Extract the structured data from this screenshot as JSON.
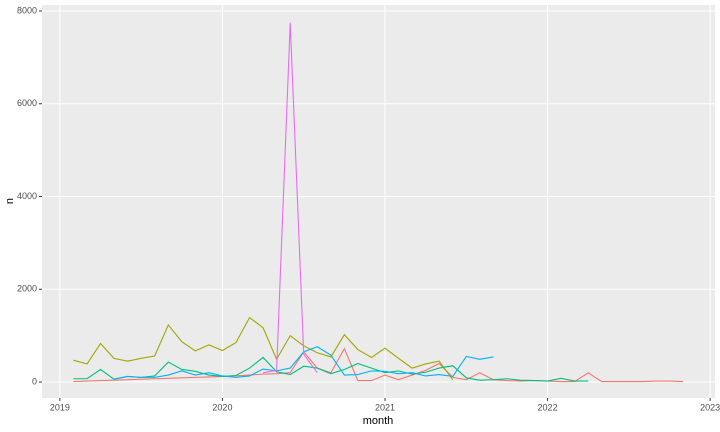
{
  "chart_data": {
    "type": "line",
    "x_label": "month",
    "y_label": "n",
    "xlim": [
      2018.89,
      2023.03
    ],
    "xticks": [
      2019,
      2020,
      2021,
      2022,
      2023
    ],
    "ylim": [
      -345,
      8130
    ],
    "yticks": [
      0,
      2000,
      4000,
      6000,
      8000
    ],
    "grid": true,
    "series": [
      {
        "color": "#F8766D",
        "x": [
          2019.083,
          2019.167,
          2019.25,
          2019.333,
          2019.417,
          2019.5,
          2019.583,
          2019.667,
          2019.75,
          2019.833,
          2019.917,
          2020,
          2020.083,
          2020.167,
          2020.25,
          2020.333,
          2020.417,
          2020.5,
          2020.583,
          2020.667,
          2020.75,
          2020.833,
          2020.917,
          2021,
          2021.083,
          2021.167,
          2021.25,
          2021.333,
          2021.417,
          2021.5,
          2021.583,
          2021.667,
          2021.75,
          2021.833,
          2021.917,
          2022,
          2022.083,
          2022.167,
          2022.25,
          2022.333,
          2022.417,
          2022.5,
          2022.583,
          2022.667,
          2022.75,
          2022.833
        ],
        "values": [
          10,
          20,
          30,
          40,
          50,
          60,
          70,
          80,
          90,
          100,
          110,
          120,
          130,
          150,
          170,
          180,
          200,
          650,
          300,
          200,
          720,
          30,
          30,
          150,
          50,
          150,
          250,
          400,
          100,
          50,
          200,
          50,
          30,
          20,
          30,
          20,
          10,
          10,
          200,
          10,
          10,
          10,
          10,
          20,
          20,
          10
        ]
      },
      {
        "color": "#A3A500",
        "x": [
          2019.083,
          2019.167,
          2019.25,
          2019.333,
          2019.417,
          2019.5,
          2019.583,
          2019.667,
          2019.75,
          2019.833,
          2019.917,
          2020,
          2020.083,
          2020.167,
          2020.25,
          2020.333,
          2020.417,
          2020.5,
          2020.583,
          2020.667,
          2020.75,
          2020.833,
          2020.917,
          2021,
          2021.083,
          2021.167,
          2021.25,
          2021.333,
          2021.417
        ],
        "values": [
          470,
          390,
          830,
          510,
          450,
          510,
          560,
          1230,
          870,
          670,
          800,
          680,
          850,
          1390,
          1170,
          490,
          1000,
          780,
          630,
          540,
          1020,
          700,
          530,
          730,
          510,
          300,
          390,
          450,
          50
        ]
      },
      {
        "color": "#00BF7D",
        "x": [
          2019.083,
          2019.167,
          2019.25,
          2019.333,
          2019.417,
          2019.5,
          2019.583,
          2019.667,
          2019.75,
          2019.833,
          2019.917,
          2020,
          2020.083,
          2020.167,
          2020.25,
          2020.333,
          2020.417,
          2020.5,
          2020.583,
          2020.667,
          2020.75,
          2020.833,
          2020.917,
          2021,
          2021.083,
          2021.167,
          2021.25,
          2021.333,
          2021.417,
          2021.5,
          2021.583,
          2021.667,
          2021.75,
          2021.833,
          2021.917,
          2022,
          2022.083,
          2022.167,
          2022.25
        ],
        "values": [
          70,
          70,
          270,
          60,
          120,
          100,
          130,
          430,
          270,
          230,
          150,
          120,
          140,
          300,
          530,
          220,
          160,
          340,
          300,
          180,
          270,
          400,
          300,
          200,
          240,
          170,
          210,
          300,
          350,
          90,
          40,
          50,
          70,
          40,
          30,
          20,
          80,
          20,
          20
        ]
      },
      {
        "color": "#00B0F6",
        "x": [
          2019.333,
          2019.417,
          2019.5,
          2019.583,
          2019.667,
          2019.75,
          2019.833,
          2019.917,
          2020,
          2020.083,
          2020.167,
          2020.25,
          2020.333,
          2020.417,
          2020.5,
          2020.583,
          2020.667,
          2020.75,
          2020.833,
          2020.917,
          2021,
          2021.083,
          2021.167,
          2021.25,
          2021.333,
          2021.417,
          2021.5,
          2021.583,
          2021.667
        ],
        "values": [
          60,
          120,
          100,
          100,
          150,
          240,
          150,
          200,
          130,
          100,
          130,
          280,
          240,
          300,
          650,
          760,
          580,
          150,
          160,
          240,
          230,
          180,
          200,
          130,
          160,
          120,
          550,
          490,
          540
        ]
      },
      {
        "color": "#E76BF3",
        "x": [
          2020.25,
          2020.333,
          2020.417,
          2020.5,
          2020.583
        ],
        "values": [
          200,
          250,
          7750,
          600,
          200
        ]
      }
    ]
  }
}
